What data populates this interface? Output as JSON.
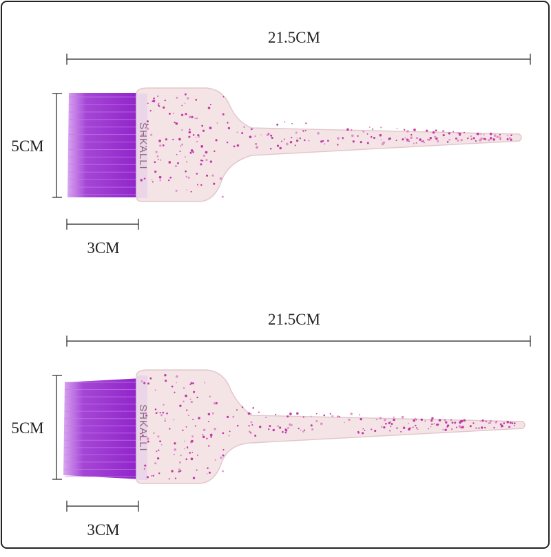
{
  "brushes": [
    {
      "length": "21.5CM",
      "height": "5CM",
      "width": "3CM",
      "brand": "SHKALLI"
    },
    {
      "length": "21.5CM",
      "height": "5CM",
      "width": "3CM",
      "brand": "SHKALLI"
    }
  ]
}
